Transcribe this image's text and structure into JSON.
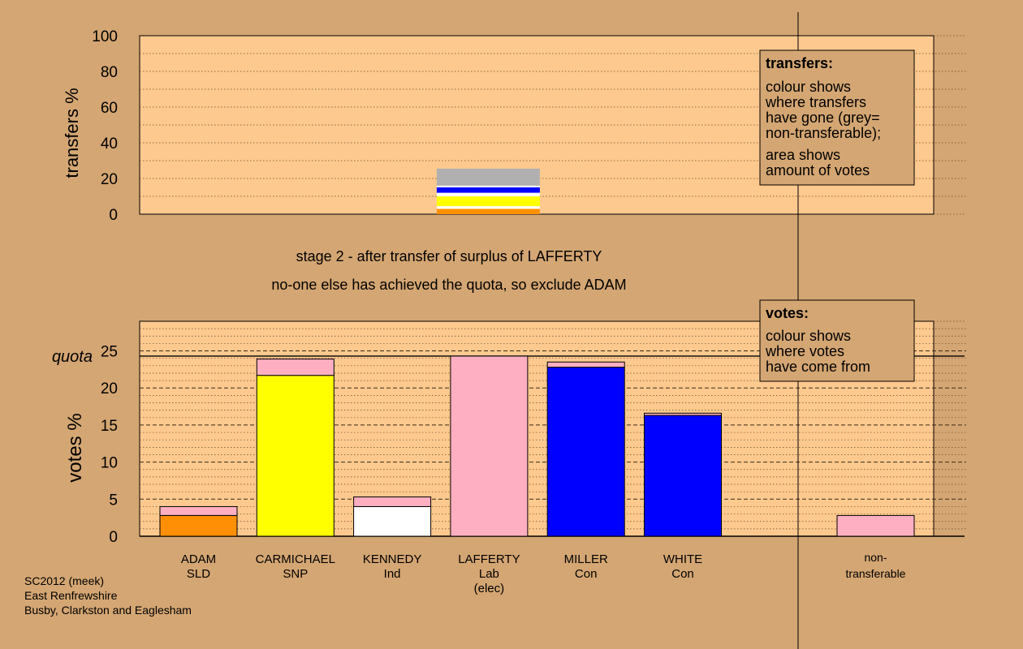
{
  "colors": {
    "background": "#d4a673",
    "panel": "#fdc98e",
    "legend_box": "#d4a673",
    "orange": "#ff9005",
    "yellow": "#ffff00",
    "white": "#ffffff",
    "pink": "#ffafc1",
    "blue": "#0000ff",
    "grey": "#b0b0b0"
  },
  "chart_data": [
    {
      "type": "bar",
      "name": "transfers",
      "ylabel": "transfers %",
      "ylim": [
        0,
        100
      ],
      "yticks": [
        0,
        20,
        40,
        60,
        80,
        100
      ],
      "grid": "dotted every 10",
      "transfer_stack": [
        {
          "color": "orange",
          "value": 3
        },
        {
          "color": "white",
          "value": 1.5
        },
        {
          "color": "yellow",
          "value": 5.5
        },
        {
          "color": "white",
          "value": 2
        },
        {
          "color": "blue",
          "value": 3
        },
        {
          "color": "white",
          "value": 1
        },
        {
          "color": "grey",
          "value": 9.5
        }
      ],
      "transfer_from": "LAFFERTY",
      "legend": {
        "title": "transfers:",
        "lines": [
          "colour shows",
          "where transfers",
          "have gone (grey=",
          "non-transferable);"
        ],
        "lines2": [
          "area shows",
          "amount of votes"
        ],
        "placement": "top-right"
      }
    },
    {
      "type": "bar",
      "name": "votes",
      "ylabel": "votes %",
      "ylim": [
        0,
        29
      ],
      "yticks": [
        0,
        5,
        10,
        15,
        20,
        25
      ],
      "quota": 24.3,
      "quota_label": "quota",
      "legend": {
        "title": "votes:",
        "lines": [
          "colour shows",
          "where votes",
          "have come from"
        ],
        "placement": "top-right"
      },
      "candidates": [
        {
          "name": "ADAM",
          "party": "SLD",
          "extra": "",
          "segments": [
            {
              "color": "orange",
              "value": 2.8
            },
            {
              "color": "pink",
              "value": 1.2
            }
          ]
        },
        {
          "name": "CARMICHAEL",
          "party": "SNP",
          "extra": "",
          "segments": [
            {
              "color": "yellow",
              "value": 21.7
            },
            {
              "color": "pink",
              "value": 2.2
            }
          ]
        },
        {
          "name": "KENNEDY",
          "party": "Ind",
          "extra": "",
          "segments": [
            {
              "color": "white",
              "value": 4.0
            },
            {
              "color": "pink",
              "value": 1.3
            }
          ]
        },
        {
          "name": "LAFFERTY",
          "party": "Lab",
          "extra": "(elec)",
          "segments": [
            {
              "color": "pink",
              "value": 24.3
            }
          ]
        },
        {
          "name": "MILLER",
          "party": "Con",
          "extra": "",
          "segments": [
            {
              "color": "blue",
              "value": 22.8
            },
            {
              "color": "pink",
              "value": 0.7
            }
          ]
        },
        {
          "name": "WHITE",
          "party": "Con",
          "extra": "",
          "segments": [
            {
              "color": "blue",
              "value": 16.3
            },
            {
              "color": "pink",
              "value": 0.3
            }
          ]
        }
      ],
      "nontransferable": {
        "label1": "non-",
        "label2": "transferable",
        "value": 2.8,
        "color": "pink"
      }
    }
  ],
  "captions": {
    "stage": "stage 2 - after transfer of surplus of LAFFERTY",
    "note": "no-one else has achieved the quota, so exclude ADAM"
  },
  "footer": {
    "line1": "SC2012 (meek)",
    "line2": "East Renfrewshire",
    "line3": "Busby, Clarkston and Eaglesham"
  }
}
